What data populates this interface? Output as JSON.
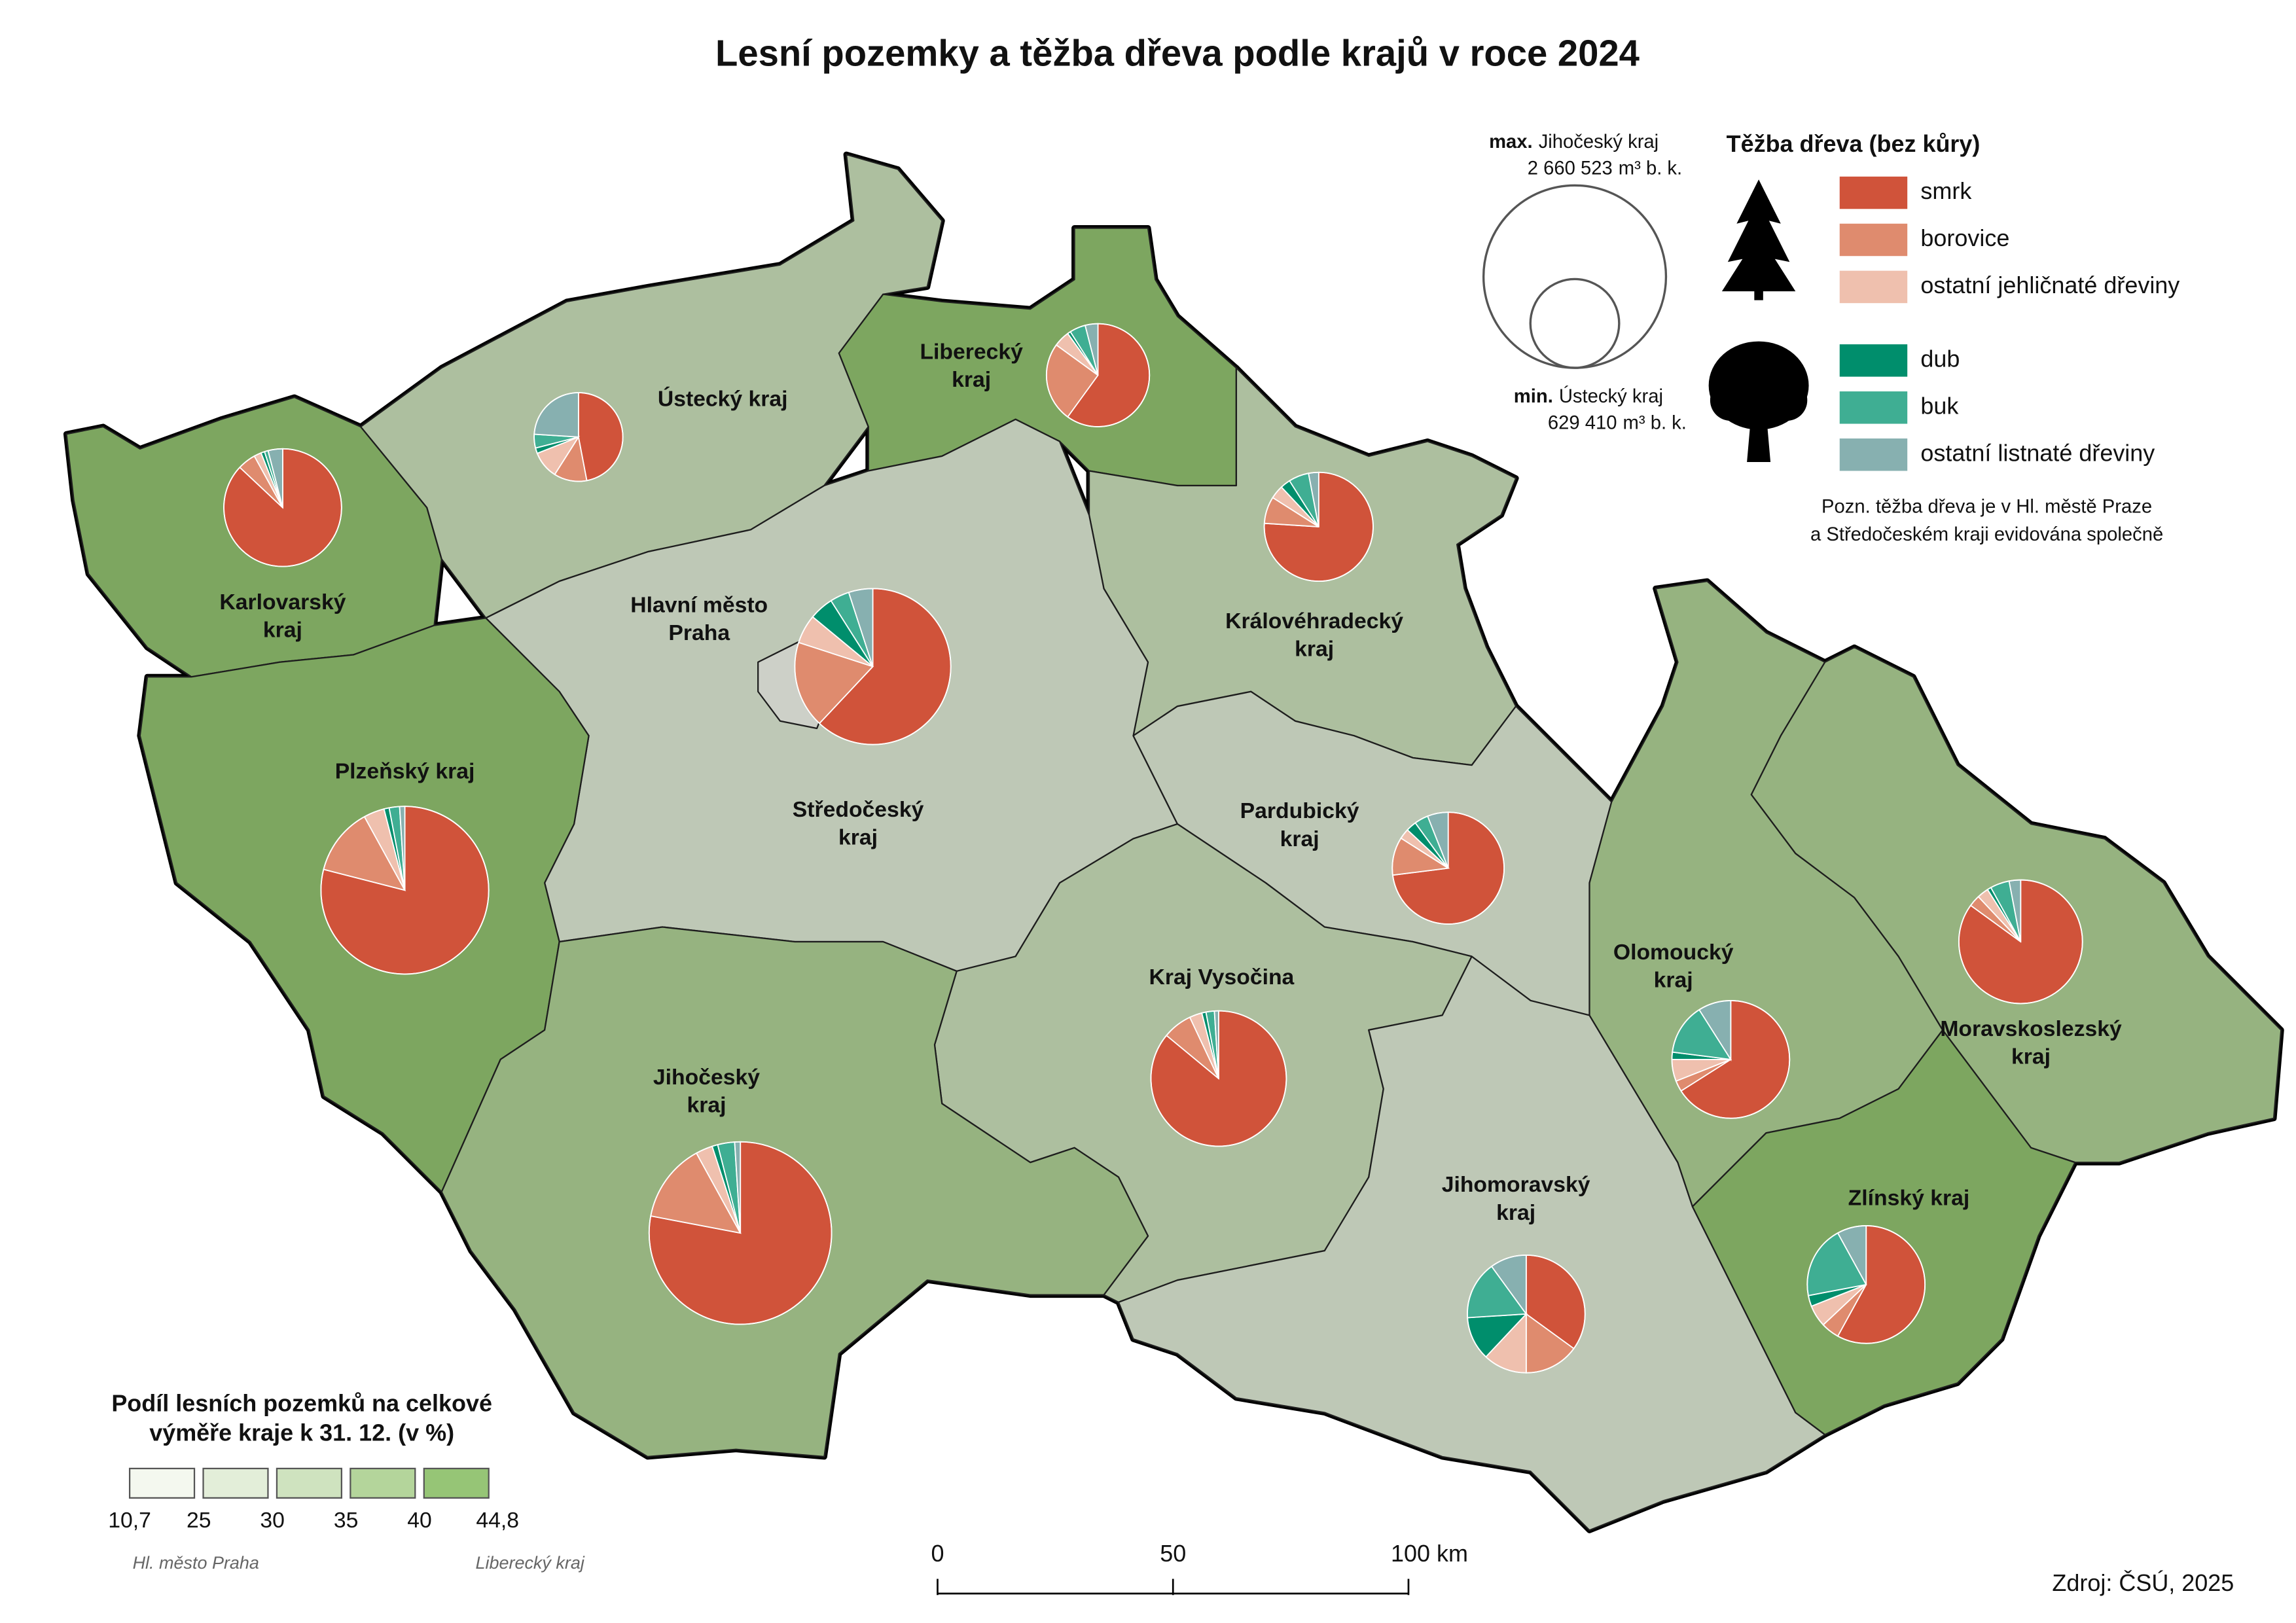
{
  "title": "Lesní pozemky a těžba dřeva podle krajů v roce 2024",
  "regions": [
    {
      "label": [
        "Karlovarský",
        "kraj"
      ],
      "forest_share": 42.5,
      "harvest_total_m3": 1107000,
      "harvest_shares": [
        87,
        5,
        2,
        1,
        1,
        4
      ]
    },
    {
      "label": [
        "Ústecký kraj"
      ],
      "forest_share": 30.5,
      "harvest_total_m3": 629410,
      "harvest_shares": [
        47,
        12,
        10,
        2,
        5,
        24
      ]
    },
    {
      "label": [
        "Liberecký",
        "kraj"
      ],
      "forest_share": 44.8,
      "harvest_total_m3": 848000,
      "harvest_shares": [
        60,
        25,
        5,
        1,
        5,
        4
      ]
    },
    {
      "label": [
        "Královéhradecký",
        "kraj"
      ],
      "forest_share": 31.0,
      "harvest_total_m3": 948000,
      "harvest_shares": [
        76,
        8,
        4,
        3,
        6,
        3
      ]
    },
    {
      "label": [
        "Středočeský",
        "kraj"
      ],
      "forest_share": 27.5,
      "harvest_total_m3": 1944000,
      "harvest_shares": [
        62,
        18,
        6,
        5,
        4,
        5
      ]
    },
    {
      "label": [
        "Hlavní město",
        "Praha"
      ],
      "forest_share": 10.7
    },
    {
      "label": [
        "Plzeňský kraj"
      ],
      "forest_share": 40.1,
      "harvest_total_m3": 2249000,
      "harvest_shares": [
        79,
        13,
        4,
        1,
        2,
        1
      ]
    },
    {
      "label": [
        "Pardubický",
        "kraj"
      ],
      "forest_share": 29.4,
      "harvest_total_m3": 1000000,
      "harvest_shares": [
        73,
        11,
        3,
        3,
        4,
        6
      ]
    },
    {
      "label": [
        "Kraj Vysočina"
      ],
      "forest_share": 30.6,
      "harvest_total_m3": 1465000,
      "harvest_shares": [
        86,
        7,
        3,
        1,
        2,
        1
      ]
    },
    {
      "label": [
        "Jihočeský",
        "kraj"
      ],
      "forest_share": 37.3,
      "harvest_total_m3": 2660523,
      "harvest_shares": [
        78,
        14,
        3,
        1,
        3,
        1
      ]
    },
    {
      "label": [
        "Jihomoravský",
        "kraj"
      ],
      "forest_share": 28.0,
      "harvest_total_m3": 1107000,
      "harvest_shares": [
        35,
        15,
        12,
        12,
        16,
        10
      ]
    },
    {
      "label": [
        "Olomoucký",
        "kraj"
      ],
      "forest_share": 35.2,
      "harvest_total_m3": 1107000,
      "harvest_shares": [
        66,
        3,
        6,
        2,
        14,
        9
      ]
    },
    {
      "label": [
        "Moravskoslezský",
        "kraj"
      ],
      "forest_share": 35.4,
      "harvest_total_m3": 1221000,
      "harvest_shares": [
        85,
        3,
        3,
        1,
        5,
        3
      ]
    },
    {
      "label": [
        "Zlínský kraj"
      ],
      "forest_share": 40.1,
      "harvest_total_m3": 1107000,
      "harvest_shares": [
        58,
        5,
        6,
        3,
        20,
        8
      ]
    }
  ],
  "harvest_legend": {
    "title": "Těžba dřeva (bez kůry)",
    "species": [
      {
        "name": "smrk",
        "color": "#d0533a"
      },
      {
        "name": "borovice",
        "color": "#df8b6e"
      },
      {
        "name": "ostatní jehličnaté dřeviny",
        "color": "#efc0ae"
      },
      {
        "name": "dub",
        "color": "#008e6c"
      },
      {
        "name": "buk",
        "color": "#3fae93"
      },
      {
        "name": "ostatní listnaté dřeviny",
        "color": "#87b0b0"
      }
    ],
    "note": [
      "Pozn. těžba dřeva je v Hl. městě Praze",
      "a Středočeském kraji evidována společně"
    ]
  },
  "size_legend": {
    "max": {
      "label": "max.",
      "region": "Jihočeský kraj",
      "value": 2660523,
      "value_label": "2 660 523",
      "unit": "m³ b. k."
    },
    "min": {
      "label": "min.",
      "region": "Ústecký kraj",
      "value": 629410,
      "value_label": "629 410",
      "unit": "m³ b. k."
    }
  },
  "share_legend": {
    "title": [
      "Podíl lesních pozemků na celkové",
      "výměře kraje k 31. 12. (v %)"
    ],
    "breaks": [
      {
        "value": 10.7,
        "label": "10,7"
      },
      25,
      30,
      35,
      40,
      {
        "value": 44.8,
        "label": "44,8"
      }
    ],
    "colors": [
      "#f4f8ef",
      "#e3eed9",
      "#cfe3bf",
      "#b4d59b",
      "#96c576"
    ],
    "notes": [
      "Hl. město Praha",
      "Liberecký kraj"
    ]
  },
  "scale_bar": {
    "ticks": [
      0,
      50,
      {
        "value": 100,
        "label": "100 km"
      }
    ]
  },
  "source": "Zdroj: ČSÚ, 2025"
}
